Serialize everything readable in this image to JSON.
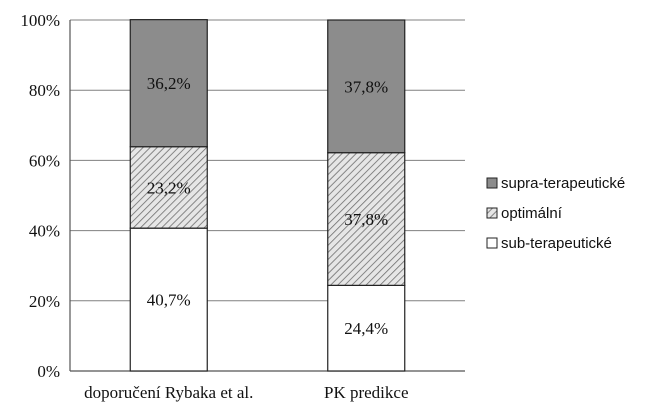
{
  "chart_data": {
    "type": "bar",
    "stacked": true,
    "normalized": true,
    "categories": [
      "doporučení Rybaka et al.",
      "PK predikce"
    ],
    "series": [
      {
        "name": "sub-terapeutické",
        "values": [
          40.7,
          24.4
        ],
        "labels": [
          "40,7%",
          "24,4%"
        ],
        "fill": "#ffffff"
      },
      {
        "name": "optimální",
        "values": [
          23.2,
          37.8
        ],
        "labels": [
          "23,2%",
          "37,8%"
        ],
        "fill": "hatch"
      },
      {
        "name": "supra-terapeutické",
        "values": [
          36.2,
          37.8
        ],
        "labels": [
          "36,2%",
          "37,8%"
        ],
        "fill": "#8c8c8c"
      }
    ],
    "legend_order": [
      "supra-terapeutické",
      "optimální",
      "sub-terapeutické"
    ],
    "yticks": [
      "0%",
      "20%",
      "40%",
      "60%",
      "80%",
      "100%"
    ],
    "ylim": [
      0,
      100
    ],
    "grid": true,
    "legend_position": "right",
    "colors": {
      "axis": "#555555",
      "grid": "#808080",
      "bar_border": "#222222",
      "supra": "#8c8c8c",
      "hatch_bg": "#e6e6e6",
      "hatch_line": "#6e6e6e"
    }
  }
}
